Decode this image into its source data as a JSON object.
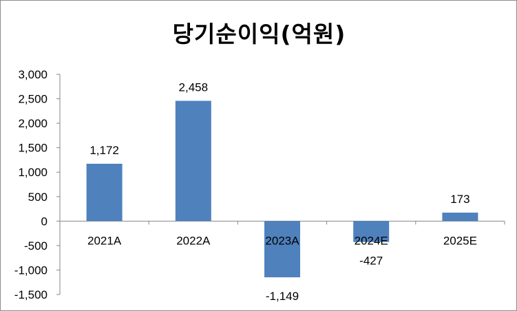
{
  "chart_data": {
    "type": "bar",
    "title": "당기순이익(억원)",
    "categories": [
      "2021A",
      "2022A",
      "2023A",
      "2024E",
      "2025E"
    ],
    "values": [
      1172,
      2458,
      -1149,
      -427,
      173
    ],
    "value_labels": [
      "1,172",
      "2,458",
      "-1,149",
      "-427",
      "173"
    ],
    "ylim": [
      -1500,
      3000
    ],
    "yticks": [
      3000,
      2500,
      2000,
      1500,
      1000,
      500,
      0,
      -500,
      -1000,
      -1500
    ],
    "ytick_labels": [
      "3,000",
      "2,500",
      "2,000",
      "1,500",
      "1,000",
      "500",
      "0",
      "-500",
      "-1,000",
      "-1,500"
    ],
    "xlabel": "",
    "ylabel": "",
    "grid": false,
    "legend": "none",
    "bar_color": "#4f81bd"
  }
}
